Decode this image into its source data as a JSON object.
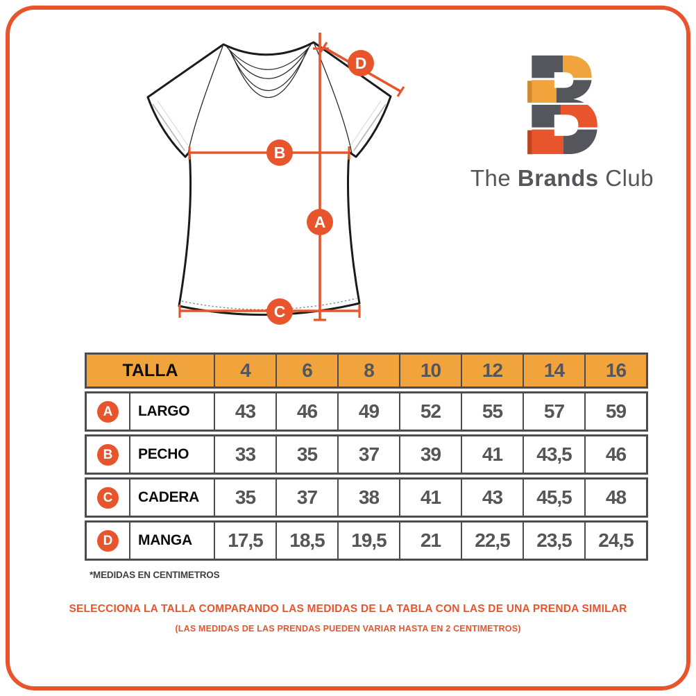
{
  "brand": {
    "name": "The Brands Club",
    "name_prefix": "The ",
    "name_bold": "Brands",
    "name_suffix": " Club",
    "logo_letter": "B"
  },
  "colors": {
    "accent_orange": "#E8552C",
    "header_amber": "#F2A43C",
    "number_gray": "#54565A",
    "logo_gray": "#54565B",
    "table_border": "#4A4C50"
  },
  "diagram": {
    "badges": [
      {
        "letter": "A",
        "measure": "LARGO"
      },
      {
        "letter": "B",
        "measure": "PECHO"
      },
      {
        "letter": "C",
        "measure": "CADERA"
      },
      {
        "letter": "D",
        "measure": "MANGA"
      }
    ]
  },
  "table": {
    "header_label": "TALLA",
    "sizes": [
      "4",
      "6",
      "8",
      "10",
      "12",
      "14",
      "16"
    ],
    "rows": [
      {
        "badge": "A",
        "label": "LARGO",
        "values": [
          "43",
          "46",
          "49",
          "52",
          "55",
          "57",
          "59"
        ]
      },
      {
        "badge": "B",
        "label": "PECHO",
        "values": [
          "33",
          "35",
          "37",
          "39",
          "41",
          "43,5",
          "46"
        ]
      },
      {
        "badge": "C",
        "label": "CADERA",
        "values": [
          "35",
          "37",
          "38",
          "41",
          "43",
          "45,5",
          "48"
        ]
      },
      {
        "badge": "D",
        "label": "MANGA",
        "values": [
          "17,5",
          "18,5",
          "19,5",
          "21",
          "22,5",
          "23,5",
          "24,5"
        ]
      }
    ]
  },
  "footnotes": {
    "units": "*MEDIDAS EN CENTIMETROS",
    "instruction": "SELECCIONA LA TALLA COMPARANDO LAS MEDIDAS DE LA TABLA CON LAS DE UNA PRENDA SIMILAR",
    "tolerance": "(LAS MEDIDAS DE LAS PRENDAS PUEDEN VARIAR HASTA EN 2 CENTIMETROS)"
  }
}
